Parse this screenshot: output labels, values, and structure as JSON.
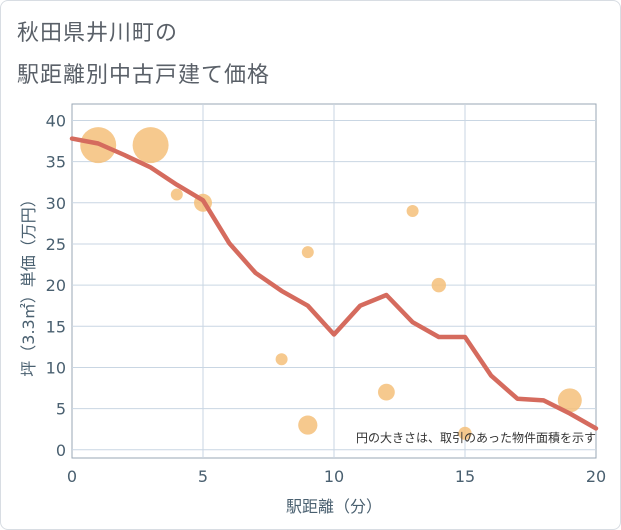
{
  "title_line1": "秋田県井川町の",
  "title_line2": "駅距離別中古戸建て価格",
  "chart_data": {
    "type": "scatter",
    "title": "秋田県井川町の 駅距離別中古戸建て価格",
    "xlabel": "駅距離（分）",
    "ylabel": "坪（3.3㎡）単価（万円）",
    "xlim": [
      0,
      20
    ],
    "ylim": [
      -1,
      42
    ],
    "x_ticks": [
      0,
      5,
      10,
      15,
      20
    ],
    "y_ticks": [
      0,
      5,
      10,
      15,
      20,
      25,
      30,
      35,
      40
    ],
    "grid": true,
    "note": "円の大きさは、取引のあった物件面積を示す",
    "points": [
      {
        "x": 1,
        "y": 37,
        "size": 3
      },
      {
        "x": 3,
        "y": 37,
        "size": 3
      },
      {
        "x": 4,
        "y": 31,
        "size": 1
      },
      {
        "x": 5,
        "y": 30,
        "size": 1.5
      },
      {
        "x": 8,
        "y": 11,
        "size": 1
      },
      {
        "x": 9,
        "y": 24,
        "size": 1
      },
      {
        "x": 9,
        "y": 3,
        "size": 1.6
      },
      {
        "x": 12,
        "y": 7,
        "size": 1.4
      },
      {
        "x": 13,
        "y": 29,
        "size": 1
      },
      {
        "x": 14,
        "y": 20,
        "size": 1.2
      },
      {
        "x": 15,
        "y": 2,
        "size": 1.1
      },
      {
        "x": 19,
        "y": 6,
        "size": 2
      }
    ],
    "trend": {
      "x": [
        0,
        1,
        2,
        3,
        4,
        5,
        6,
        7,
        8,
        9,
        10,
        11,
        12,
        13,
        14,
        15,
        16,
        17,
        18,
        19,
        20
      ],
      "y": [
        37.8,
        37.2,
        35.8,
        34.3,
        32.2,
        30.3,
        25.1,
        21.5,
        19.3,
        17.5,
        14.0,
        17.5,
        18.8,
        15.5,
        13.7,
        13.7,
        9.0,
        6.2,
        6.0,
        4.4,
        2.6
      ]
    },
    "colors": {
      "bubble": "#f5c07a",
      "trend": "#d56b5e",
      "grid": "#c9d6e3",
      "axis": "#9aa7b4"
    }
  }
}
